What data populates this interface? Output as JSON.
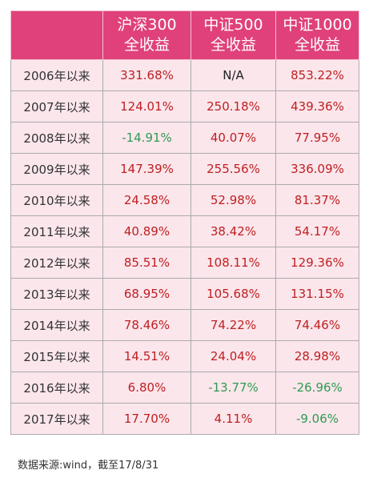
{
  "headers": {
    "corner": "",
    "columns": [
      {
        "line1": "沪深300",
        "line2": "全收益"
      },
      {
        "line1": "中证500",
        "line2": "全收益"
      },
      {
        "line1": "中证1000",
        "line2": "全收益"
      }
    ]
  },
  "rows": [
    {
      "year": "2006年以来",
      "values": [
        "331.68%",
        "N/A",
        "853.22%"
      ]
    },
    {
      "year": "2007年以来",
      "values": [
        "124.01%",
        "250.18%",
        "439.36%"
      ]
    },
    {
      "year": "2008年以来",
      "values": [
        "-14.91%",
        "40.07%",
        "77.95%"
      ]
    },
    {
      "year": "2009年以来",
      "values": [
        "147.39%",
        "255.56%",
        "336.09%"
      ]
    },
    {
      "year": "2010年以来",
      "values": [
        "24.58%",
        "52.98%",
        "81.37%"
      ]
    },
    {
      "year": "2011年以来",
      "values": [
        "40.89%",
        "38.42%",
        "54.17%"
      ]
    },
    {
      "year": "2012年以来",
      "values": [
        "85.51%",
        "108.11%",
        "129.36%"
      ]
    },
    {
      "year": "2013年以来",
      "values": [
        "68.95%",
        "105.68%",
        "131.15%"
      ]
    },
    {
      "year": "2014年以来",
      "values": [
        "78.46%",
        "74.22%",
        "74.46%"
      ]
    },
    {
      "year": "2015年以来",
      "values": [
        "14.51%",
        "24.04%",
        "28.98%"
      ]
    },
    {
      "year": "2016年以来",
      "values": [
        "6.80%",
        "-13.77%",
        "-26.96%"
      ]
    },
    {
      "year": "2017年以来",
      "values": [
        "17.70%",
        "4.11%",
        "-9.06%"
      ]
    }
  ],
  "source_note": "数据来源:wind，截至17/8/31",
  "colors": {
    "header_bg": "#e0417a",
    "cell_bg": "#fbe6ec",
    "positive": "#bf2020",
    "negative": "#2e9b4f"
  }
}
